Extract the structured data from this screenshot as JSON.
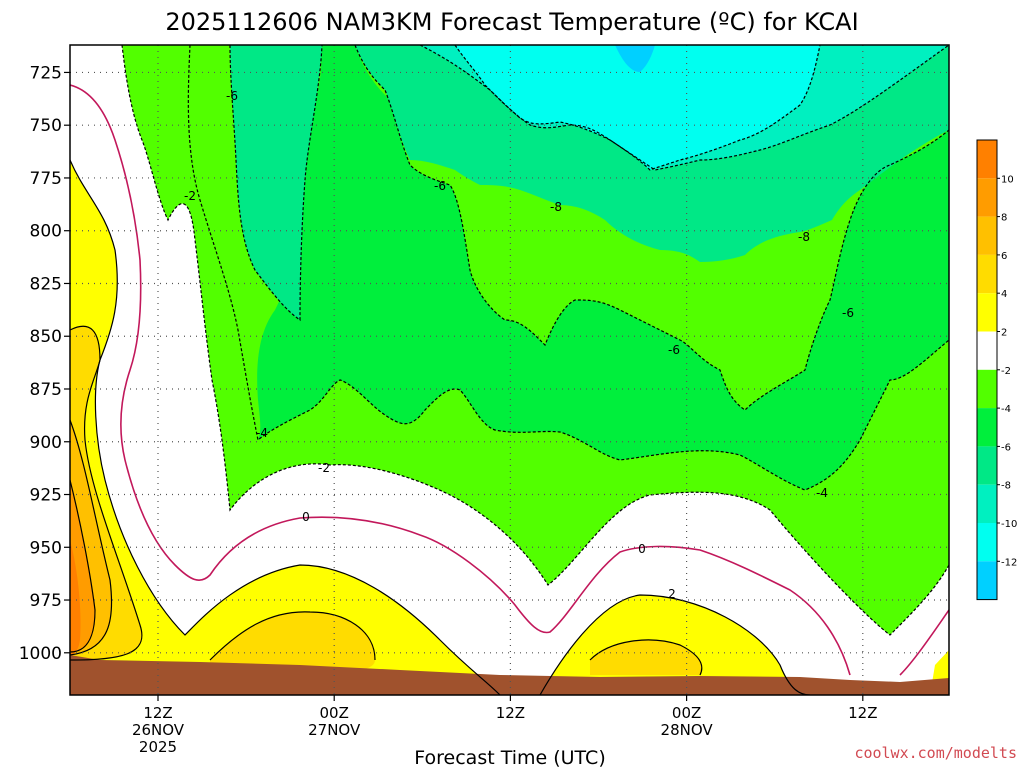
{
  "chart_data": {
    "type": "heatmap",
    "title": "2025112606 NAM3KM Forecast Temperature (ºC) for KCAI",
    "xlabel": "Forecast Time (UTC)",
    "ylabel": "Pressure (hPa)",
    "yticks": [
      "725",
      "750",
      "775",
      "800",
      "825",
      "850",
      "875",
      "900",
      "925",
      "950",
      "975",
      "1000"
    ],
    "xticks": [
      {
        "line1": "12Z",
        "line2": "26NOV",
        "line3": "2025"
      },
      {
        "line1": "00Z",
        "line2": "27NOV",
        "line3": ""
      },
      {
        "line1": "12Z",
        "line2": "",
        "line3": ""
      },
      {
        "line1": "00Z",
        "line2": "28NOV",
        "line3": ""
      },
      {
        "line1": "12Z",
        "line2": "",
        "line3": ""
      }
    ],
    "ylim": [
      1020,
      712
    ],
    "grid": true,
    "colorbar": {
      "labels": [
        "10",
        "8",
        "6",
        "4",
        "2",
        "-2",
        "-4",
        "-6",
        "-8",
        "-10",
        "-12"
      ],
      "bins": [
        {
          "range": "10 to 12",
          "color": "#ff8000"
        },
        {
          "range": "8 to 10",
          "color": "#ff9c00"
        },
        {
          "range": "6 to 8",
          "color": "#ffc000"
        },
        {
          "range": "4 to 6",
          "color": "#ffdc00"
        },
        {
          "range": "2 to 4",
          "color": "#ffff00"
        },
        {
          "range": "-2 to 2",
          "color": "#ffffff"
        },
        {
          "range": "-4 to -2",
          "color": "#52ff00"
        },
        {
          "range": "-6 to -4",
          "color": "#00ef3c"
        },
        {
          "range": "-8 to -6",
          "color": "#00e886"
        },
        {
          "range": "-10 to -8",
          "color": "#00f0c0"
        },
        {
          "range": "-12 to -10",
          "color": "#00fff0"
        },
        {
          "range": "-14 to -12",
          "color": "#00d0ff"
        }
      ]
    },
    "contour_labels": [
      "-6",
      "-2",
      "-6",
      "-8",
      "-8",
      "-6",
      "-6",
      "-4",
      "-2",
      "-4",
      "0",
      "0",
      "2"
    ],
    "credit": "coolwx.com/modelts"
  }
}
